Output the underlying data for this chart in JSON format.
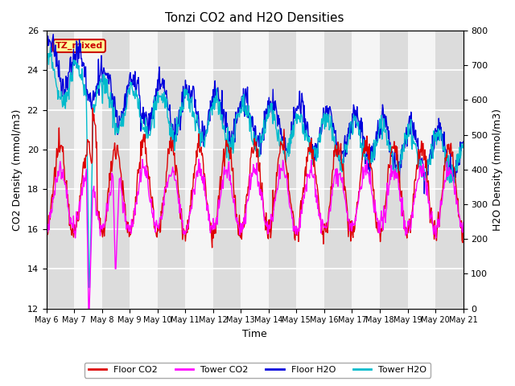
{
  "title": "Tonzi CO2 and H2O Densities",
  "xlabel": "Time",
  "ylabel_left": "CO2 Density (mmol/m3)",
  "ylabel_right": "H2O Density (mmol/m3)",
  "ylim_left": [
    12,
    26
  ],
  "ylim_right": [
    0,
    800
  ],
  "yticks_left": [
    12,
    14,
    16,
    18,
    20,
    22,
    24,
    26
  ],
  "yticks_right": [
    0,
    100,
    200,
    300,
    400,
    500,
    600,
    700,
    800
  ],
  "n_days": 15,
  "xtick_labels": [
    "May 6",
    "May 7",
    "May 8",
    "May 9",
    "May 10",
    "May 11",
    "May 12",
    "May 13",
    "May 14",
    "May 15",
    "May 16",
    "May 17",
    "May 18",
    "May 19",
    "May 20",
    "May 21"
  ],
  "band_color": "#dcdcdc",
  "background_color": "#ffffff",
  "plot_bg_color": "#f5f5f5",
  "label_box_text": "TZ_mixed",
  "label_box_facecolor": "#ffff99",
  "label_box_edgecolor": "#cc0000",
  "label_box_textcolor": "#cc0000",
  "colors": {
    "floor_co2": "#dd0000",
    "tower_co2": "#ff00ff",
    "floor_h2o": "#0000dd",
    "tower_h2o": "#00bbcc"
  },
  "legend_labels": [
    "Floor CO2",
    "Tower CO2",
    "Floor H2O",
    "Tower H2O"
  ],
  "seed": 12345
}
